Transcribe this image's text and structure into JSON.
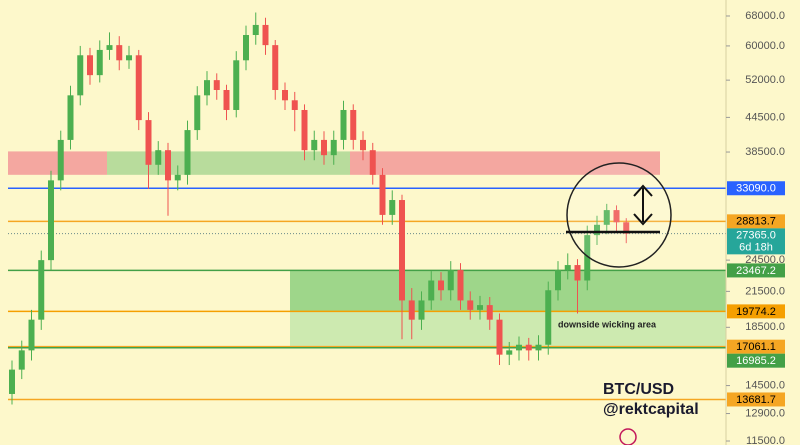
{
  "chart_data": {
    "type": "candlestick",
    "title": "BTC/USD",
    "subtitle": "@rektcapital",
    "annotations": [
      "downside wicking area"
    ],
    "log_scale": true,
    "ylim": [
      11310,
      72700
    ],
    "yticks": [
      {
        "value": 68000,
        "label": "68000.0"
      },
      {
        "value": 60000,
        "label": "60000.0"
      },
      {
        "value": 52000,
        "label": "52000.0"
      },
      {
        "value": 44500,
        "label": "44500.0"
      },
      {
        "value": 38500,
        "label": "38500.0"
      },
      {
        "value": 24500,
        "label": "24500.0"
      },
      {
        "value": 21500,
        "label": "21500.0"
      },
      {
        "value": 18500,
        "label": "18500.0"
      },
      {
        "value": 14500,
        "label": "14500.0"
      },
      {
        "value": 12900,
        "label": "12900.0"
      },
      {
        "value": 11500,
        "label": "11500.0"
      }
    ],
    "up_color": "#4caf50",
    "down_color": "#ef5350",
    "open": [
      14000,
      15500,
      16800,
      19100,
      24500,
      34200,
      40500,
      48800,
      57700,
      53100,
      59000,
      60200,
      56500,
      57700,
      44000,
      36500,
      38800,
      34200,
      35000,
      42200,
      48800,
      52000,
      49900,
      45900,
      56500,
      62800,
      65500,
      60200,
      49900,
      47800,
      45900,
      38800,
      40500,
      38000,
      40500,
      45900,
      40500,
      38800,
      35000,
      29600,
      31500,
      20700,
      19100,
      20700,
      22500,
      21600,
      23500,
      20700,
      19900,
      20300,
      19100,
      16500,
      16800,
      17200,
      16800,
      17200,
      21600,
      23500,
      24000,
      22500,
      27200,
      28400,
      30200,
      28700
    ],
    "high": [
      16100,
      17500,
      19900,
      25500,
      35600,
      42100,
      50800,
      60000,
      59500,
      61400,
      63500,
      62500,
      60000,
      59000,
      45500,
      40300,
      40000,
      36400,
      43900,
      50700,
      54000,
      53500,
      51000,
      58700,
      65300,
      69000,
      67500,
      61500,
      51500,
      49500,
      47000,
      42100,
      42000,
      42100,
      47700,
      47000,
      42000,
      40000,
      36000,
      32800,
      32200,
      21800,
      21500,
      23400,
      23300,
      24400,
      24200,
      21500,
      21100,
      21000,
      19600,
      17400,
      17800,
      17700,
      17900,
      22400,
      24400,
      25200,
      24600,
      28300,
      29500,
      31000,
      30800,
      29200
    ],
    "low": [
      13400,
      14900,
      16100,
      18300,
      23500,
      32800,
      38900,
      46800,
      51000,
      51500,
      56600,
      54200,
      54500,
      42200,
      33000,
      35000,
      29500,
      32800,
      33600,
      40500,
      46800,
      47900,
      44000,
      44500,
      54200,
      60300,
      57800,
      47900,
      45900,
      42000,
      37200,
      37200,
      36500,
      36500,
      38900,
      38900,
      37200,
      33600,
      28400,
      28400,
      17600,
      17600,
      18300,
      19900,
      20700,
      20700,
      19900,
      19100,
      19100,
      18300,
      15800,
      15800,
      16100,
      16100,
      16100,
      16500,
      20700,
      22600,
      19600,
      21600,
      26100,
      27300,
      27500,
      26300
    ],
    "close": [
      15500,
      16800,
      19100,
      24500,
      34200,
      40500,
      48800,
      57700,
      53100,
      59000,
      60200,
      56500,
      57700,
      44000,
      36500,
      38800,
      34200,
      35000,
      42200,
      48800,
      52000,
      49900,
      45900,
      56500,
      62800,
      65500,
      60200,
      49900,
      47800,
      45900,
      38800,
      40500,
      38000,
      40500,
      45900,
      40500,
      38800,
      35000,
      29600,
      31500,
      20700,
      19100,
      20700,
      22500,
      21600,
      23500,
      20700,
      19900,
      20300,
      19100,
      16500,
      16800,
      17200,
      16800,
      17200,
      21600,
      23500,
      24000,
      22500,
      27200,
      28400,
      30200,
      28700,
      27365
    ],
    "zones": [
      {
        "from": 35000,
        "to": 38600,
        "color": "#f4a7a0"
      },
      {
        "from": 35000,
        "to": 38600,
        "color": "#b8dc9c"
      },
      {
        "from": 35000,
        "to": 38600,
        "color": "#f4a7a0"
      },
      {
        "from": 19774.2,
        "to": 23467.2,
        "color": "#9ed68a"
      },
      {
        "from": 16985.2,
        "to": 19774.2,
        "color": "#cdeab0"
      }
    ],
    "levels": [
      {
        "value": 33090,
        "label": "33090.0",
        "color": "#2962ff",
        "text_color": "#ffffff",
        "style": "solid"
      },
      {
        "value": 28813.7,
        "label": "28813.7",
        "color": "#f5a623",
        "text_color": "#000000",
        "style": "solid"
      },
      {
        "value": 27365,
        "label": "27365.0",
        "sublabel": "6d 18h",
        "color": "#26a69a",
        "text_color": "#ffffff",
        "style": "dotted"
      },
      {
        "value": 23467.2,
        "label": "23467.2",
        "color": "#43a047",
        "text_color": "#ffffff",
        "style": "solid"
      },
      {
        "value": 19774.2,
        "label": "19774.2",
        "color": "#f59f00",
        "text_color": "#000000",
        "style": "solid"
      },
      {
        "value": 17061.1,
        "label": "17061.1",
        "color": "#f5a623",
        "text_color": "#000000",
        "style": "solid"
      },
      {
        "value": 16985.2,
        "label": "16985.2",
        "color": "#43a047",
        "text_color": "#ffffff",
        "style": "solid"
      },
      {
        "value": 13681.7,
        "label": "13681.7",
        "color": "#f5a623",
        "text_color": "#000000",
        "style": "solid"
      }
    ]
  }
}
